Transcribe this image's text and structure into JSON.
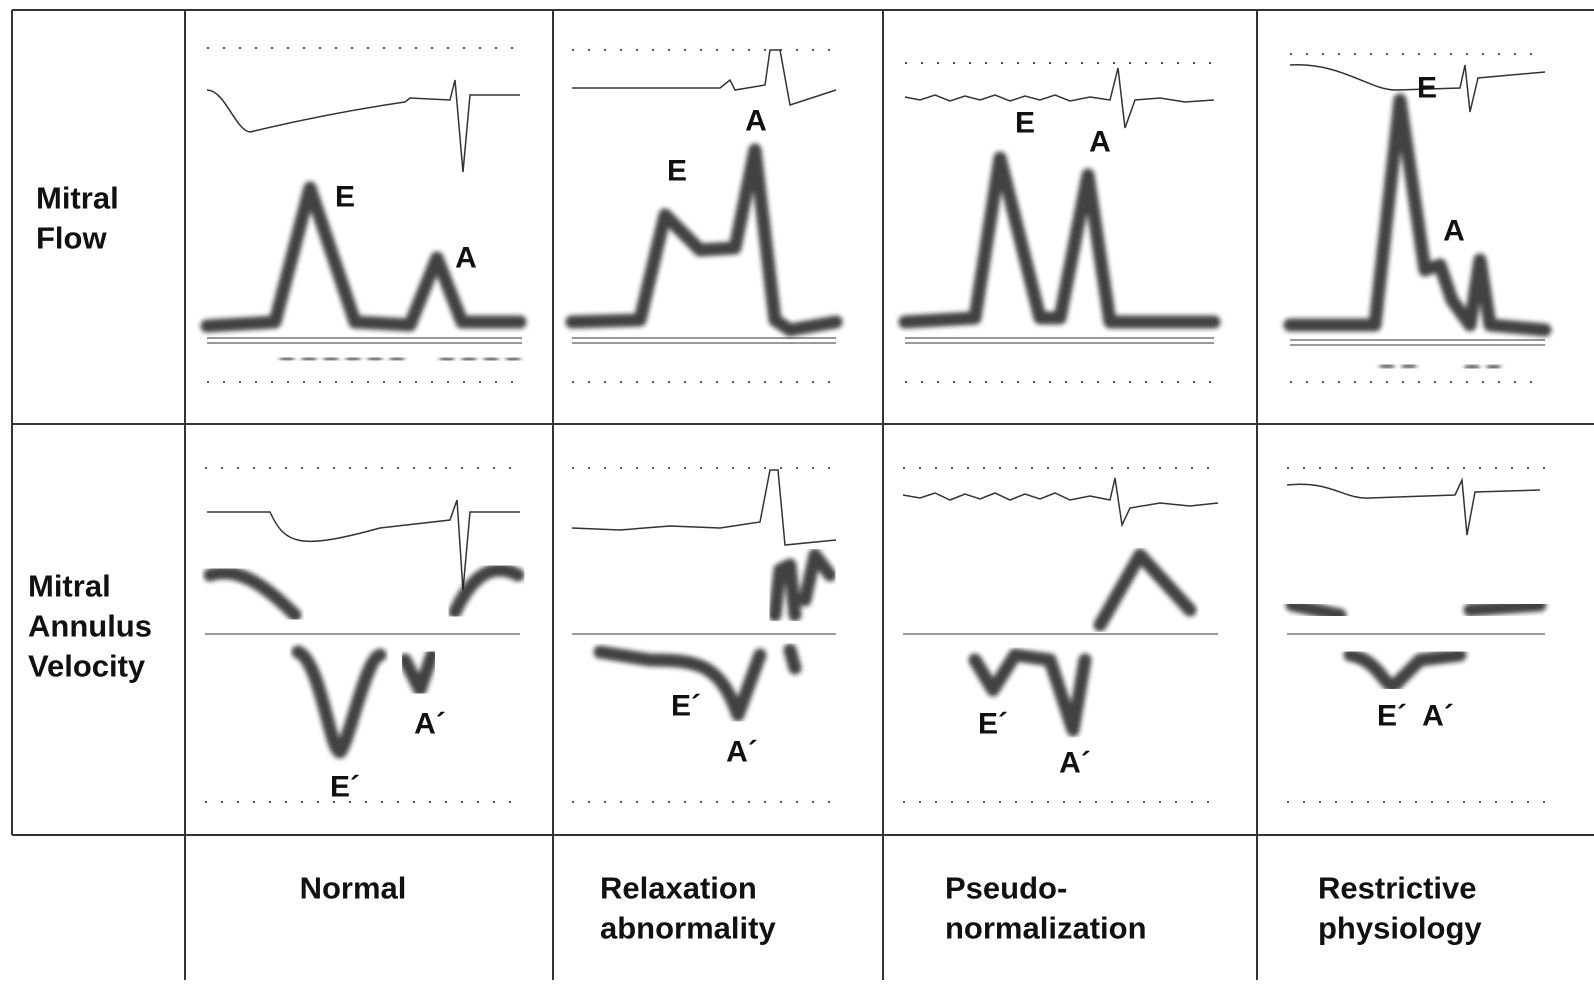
{
  "row_labels": [
    [
      "Mitral",
      "Flow"
    ],
    [
      "Mitral",
      "Annulus",
      "Velocity"
    ]
  ],
  "column_labels": [
    [
      "Normal"
    ],
    [
      "Relaxation",
      "abnormality"
    ],
    [
      "Pseudo-",
      "normalization"
    ],
    [
      "Restrictive",
      "physiology"
    ]
  ],
  "mitral_flow_labels": [
    [
      "E",
      "A"
    ],
    [
      "E",
      "A"
    ],
    [
      "E",
      "A"
    ],
    [
      "E",
      "A"
    ]
  ],
  "annulus_labels": [
    [
      "E´",
      "A´"
    ],
    [
      "E´",
      "A´"
    ],
    [
      "E´",
      "A´"
    ],
    [
      "E´",
      "A´"
    ]
  ]
}
